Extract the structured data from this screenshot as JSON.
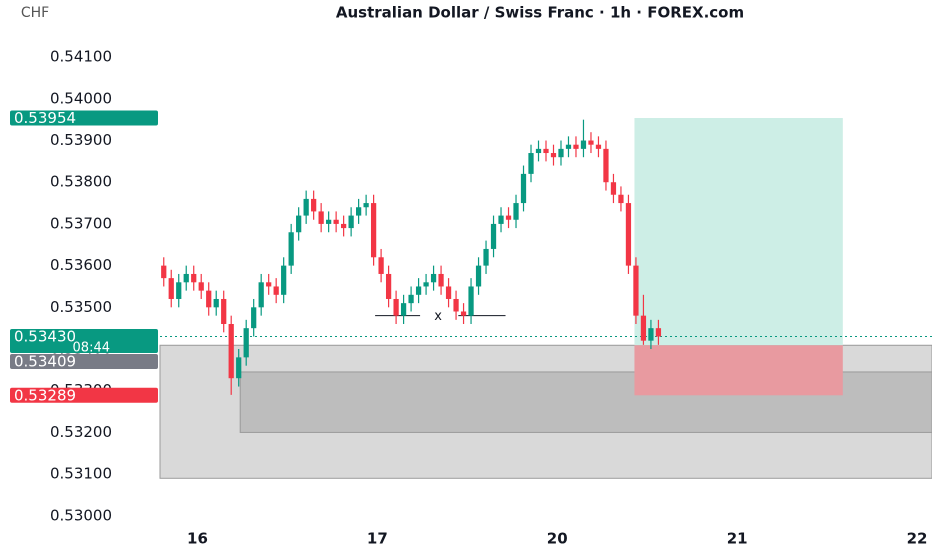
{
  "chart_data": {
    "type": "candlestick",
    "title": "Australian Dollar / Swiss Franc · 1h · FOREX.com",
    "currency": "CHF",
    "up_color": "#089981",
    "down_color": "#f23645",
    "x": [
      -4.5,
      -3.5,
      -2.5,
      -1.5,
      -0.5,
      0.5,
      1.5,
      2.5,
      3.5,
      4.5,
      5.5,
      6.5,
      7.5,
      8.5,
      9.5,
      10.5,
      11.5,
      12.5,
      13.5,
      14.5,
      15.5,
      16.5,
      17.5,
      18.5,
      19.5,
      20.5,
      21.5,
      22.5,
      23.5,
      24.5,
      25.5,
      26.5,
      27.5,
      28.5,
      29.5,
      30.5,
      31.5,
      32.5,
      33.5,
      34.5,
      35.5,
      36.5,
      37.5,
      38.5,
      39.5,
      40.5,
      41.5,
      42.5,
      43.5,
      44.5,
      45.5,
      46.5,
      47.5,
      48.5,
      49.5,
      50.5,
      51.5,
      52.5,
      53.5,
      54.5,
      55.5,
      56.5,
      57.5,
      58.5,
      59.5,
      60.5,
      61.5
    ],
    "open": [
      0.536,
      0.5357,
      0.5352,
      0.5356,
      0.5358,
      0.5356,
      0.5354,
      0.535,
      0.5352,
      0.5346,
      0.5333,
      0.5338,
      0.5345,
      0.535,
      0.5356,
      0.5355,
      0.5353,
      0.536,
      0.5368,
      0.5372,
      0.5376,
      0.5373,
      0.537,
      0.5371,
      0.537,
      0.5369,
      0.5372,
      0.5374,
      0.5375,
      0.5362,
      0.5358,
      0.5352,
      0.5348,
      0.5351,
      0.5353,
      0.5355,
      0.5356,
      0.5358,
      0.5355,
      0.5352,
      0.5349,
      0.5348,
      0.5355,
      0.536,
      0.5364,
      0.537,
      0.5372,
      0.5371,
      0.5375,
      0.5382,
      0.5387,
      0.5388,
      0.5387,
      0.5386,
      0.5388,
      0.5389,
      0.5388,
      0.539,
      0.5389,
      0.5388,
      0.538,
      0.5377,
      0.5375,
      0.536,
      0.5348,
      0.5342,
      0.5345
    ],
    "high": [
      0.5362,
      0.5359,
      0.5358,
      0.536,
      0.536,
      0.5358,
      0.5356,
      0.5354,
      0.5354,
      0.5348,
      0.534,
      0.5347,
      0.5352,
      0.5358,
      0.5358,
      0.5357,
      0.5362,
      0.537,
      0.5374,
      0.5378,
      0.5378,
      0.5375,
      0.5373,
      0.5373,
      0.5372,
      0.5374,
      0.5376,
      0.5377,
      0.5377,
      0.5364,
      0.536,
      0.5354,
      0.5353,
      0.5355,
      0.5357,
      0.5358,
      0.536,
      0.536,
      0.5357,
      0.5354,
      0.5351,
      0.5357,
      0.5362,
      0.5366,
      0.5372,
      0.5374,
      0.5374,
      0.5377,
      0.5384,
      0.5389,
      0.539,
      0.539,
      0.5389,
      0.539,
      0.5391,
      0.5391,
      0.5395,
      0.5392,
      0.5391,
      0.539,
      0.5382,
      0.5379,
      0.5377,
      0.5362,
      0.5353,
      0.5347,
      0.5347
    ],
    "low": [
      0.5355,
      0.535,
      0.535,
      0.5354,
      0.5354,
      0.5352,
      0.5348,
      0.5348,
      0.5344,
      0.5329,
      0.5331,
      0.5336,
      0.5343,
      0.5348,
      0.5353,
      0.5351,
      0.5351,
      0.5358,
      0.5366,
      0.537,
      0.5371,
      0.5368,
      0.5368,
      0.5368,
      0.5367,
      0.5367,
      0.537,
      0.5372,
      0.536,
      0.5356,
      0.535,
      0.5346,
      0.5346,
      0.5349,
      0.5351,
      0.5353,
      0.5354,
      0.5353,
      0.535,
      0.5347,
      0.5346,
      0.5346,
      0.5353,
      0.5358,
      0.5362,
      0.5368,
      0.5369,
      0.5369,
      0.5373,
      0.538,
      0.5385,
      0.5385,
      0.5384,
      0.5384,
      0.5386,
      0.5386,
      0.5386,
      0.5387,
      0.5386,
      0.5378,
      0.5375,
      0.5373,
      0.5358,
      0.5346,
      0.5341,
      0.534,
      0.5341
    ],
    "close": [
      0.5357,
      0.5352,
      0.5356,
      0.5358,
      0.5356,
      0.5354,
      0.535,
      0.5352,
      0.5346,
      0.5333,
      0.5338,
      0.5345,
      0.535,
      0.5356,
      0.5355,
      0.5353,
      0.536,
      0.5368,
      0.5372,
      0.5376,
      0.5373,
      0.537,
      0.5371,
      0.537,
      0.5369,
      0.5372,
      0.5374,
      0.5375,
      0.5362,
      0.5358,
      0.5352,
      0.5348,
      0.5351,
      0.5353,
      0.5355,
      0.5356,
      0.5358,
      0.5355,
      0.5352,
      0.5349,
      0.5348,
      0.5355,
      0.536,
      0.5364,
      0.537,
      0.5372,
      0.5371,
      0.5375,
      0.5382,
      0.5387,
      0.5388,
      0.5387,
      0.5386,
      0.5388,
      0.5389,
      0.5388,
      0.539,
      0.5389,
      0.5388,
      0.538,
      0.5377,
      0.5375,
      0.536,
      0.5348,
      0.5342,
      0.5345,
      0.5343
    ],
    "xlim": [
      -5,
      98
    ],
    "xticks": [
      {
        "value": 0,
        "label": "16"
      },
      {
        "value": 24,
        "label": "17"
      },
      {
        "value": 48,
        "label": "20"
      },
      {
        "value": 72,
        "label": "21"
      },
      {
        "value": 96,
        "label": "22"
      }
    ],
    "ylim": [
      0.52942,
      0.54237
    ],
    "yticks": [
      {
        "value": 0.541,
        "label": "0.54100"
      },
      {
        "value": 0.54,
        "label": "0.54000"
      },
      {
        "value": 0.539,
        "label": "0.53900"
      },
      {
        "value": 0.538,
        "label": "0.53800"
      },
      {
        "value": 0.537,
        "label": "0.53700"
      },
      {
        "value": 0.536,
        "label": "0.53600"
      },
      {
        "value": 0.535,
        "label": "0.53500"
      },
      {
        "value": 0.534,
        "label": "0.53400"
      },
      {
        "value": 0.533,
        "label": "0.53300"
      },
      {
        "value": 0.532,
        "label": "0.53200"
      },
      {
        "value": 0.531,
        "label": "0.53100"
      },
      {
        "value": 0.53,
        "label": "0.53000"
      }
    ],
    "zones": [
      {
        "xlim": [
          -5,
          98
        ],
        "ylim": [
          0.5309,
          0.53409
        ],
        "color": "#d9d9d9"
      },
      {
        "xlim": [
          5.7,
          98
        ],
        "ylim": [
          0.532,
          0.53345
        ],
        "color": "#bdbdbd"
      },
      {
        "xlim": [
          58.3,
          86.1
        ],
        "ylim": [
          0.53409,
          0.53954
        ],
        "color": "#cdeee6"
      },
      {
        "xlim": [
          58.3,
          86.1
        ],
        "ylim": [
          0.53289,
          0.53409
        ],
        "color": "#e89aa0"
      }
    ],
    "current_price": {
      "value": 0.5343,
      "color": "#089981"
    },
    "annotation": {
      "text": "x",
      "x": 32.1,
      "y": 0.5348,
      "lines": [
        [
          23.7,
          29.7
        ],
        [
          34.8,
          41.1
        ]
      ]
    },
    "price_labels": [
      {
        "value": 0.53954,
        "label": "0.53954",
        "color": "#089981"
      },
      {
        "value": 0.5343,
        "label": "0.53430",
        "sublabel": "08:44",
        "color": "#089981"
      },
      {
        "value": 0.53409,
        "label": "0.53409",
        "color": "#787b86"
      },
      {
        "value": 0.53289,
        "label": "0.53289",
        "color": "#f23645"
      }
    ]
  }
}
